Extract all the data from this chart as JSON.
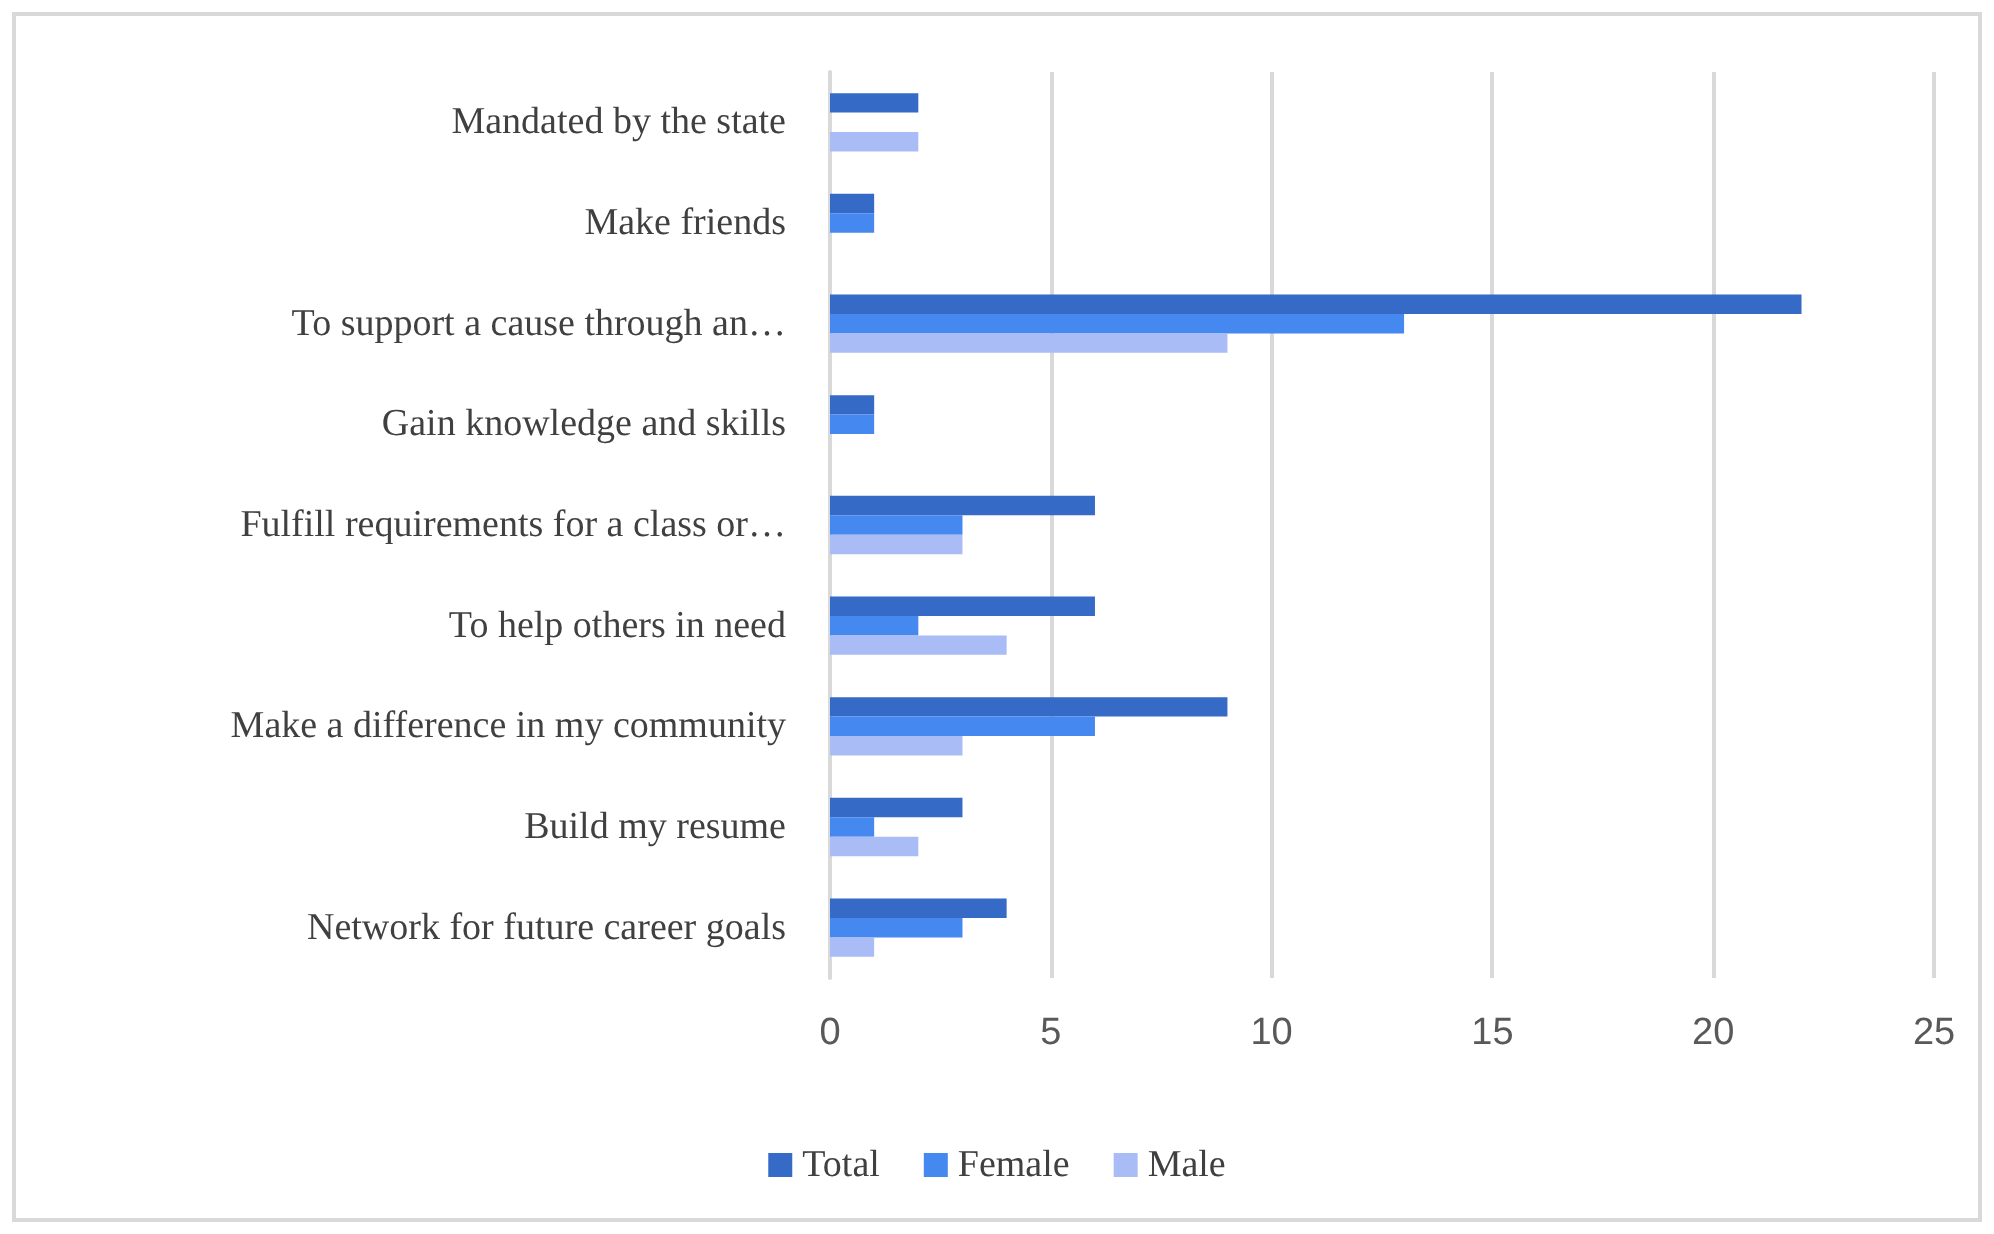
{
  "chart_data": {
    "type": "bar",
    "orientation": "horizontal",
    "categories": [
      "Mandated by the state",
      "Make friends",
      "To support a cause through an…",
      "Gain knowledge and skills",
      "Fulfill requirements for a class or…",
      "To help others in need",
      "Make a difference in my community",
      "Build my resume",
      "Network for future career goals"
    ],
    "series": [
      {
        "name": "Total",
        "color": "#356ac6",
        "values": [
          2,
          1,
          22,
          1,
          6,
          6,
          9,
          3,
          4
        ]
      },
      {
        "name": "Female",
        "color": "#4588ef",
        "values": [
          0,
          1,
          13,
          1,
          3,
          2,
          6,
          1,
          3
        ]
      },
      {
        "name": "Male",
        "color": "#a9bcf5",
        "values": [
          2,
          0,
          9,
          0,
          3,
          4,
          3,
          2,
          1
        ]
      }
    ],
    "xlim": [
      0,
      25
    ],
    "xticks": [
      0,
      5,
      10,
      15,
      20,
      25
    ],
    "grid": "x",
    "legend": "bottom"
  }
}
